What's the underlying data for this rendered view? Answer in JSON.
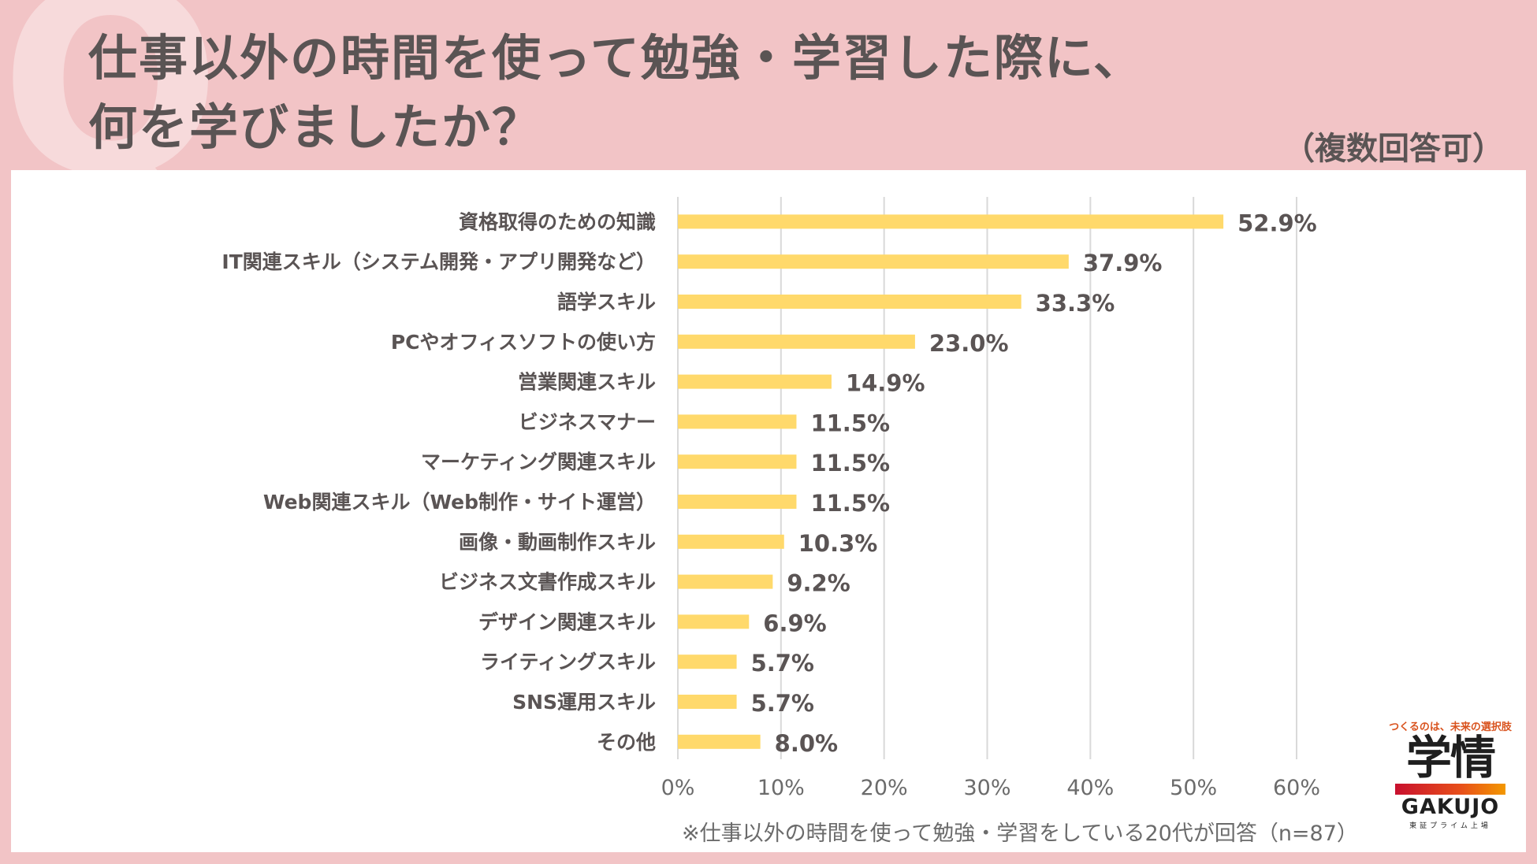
{
  "page": {
    "title_line1": "仕事以外の時間を使って勉強・学習した際に、",
    "title_line2": "何を学びましたか？",
    "subtitle": "（複数回答可）",
    "note": "※仕事以外の時間を使って勉強・学習をしている20代が回答（n=87）",
    "decorative_letter": "Q"
  },
  "logo": {
    "tagline": "つくるのは、未来の選択肢",
    "mark": "学情",
    "english": "GAKUJO",
    "listed": "東証プライム上場"
  },
  "colors": {
    "background": "#f2c4c6",
    "bar": "#ffd96b",
    "text": "#5a5454",
    "grid": "#d9d9d9"
  },
  "chart_data": {
    "type": "bar",
    "orientation": "horizontal",
    "categories": [
      "資格取得のための知識",
      "IT関連スキル（システム開発・アプリ開発など）",
      "語学スキル",
      "PCやオフィスソフトの使い方",
      "営業関連スキル",
      "ビジネスマナー",
      "マーケティング関連スキル",
      "Web関連スキル（Web制作・サイト運営）",
      "画像・動画制作スキル",
      "ビジネス文書作成スキル",
      "デザイン関連スキル",
      "ライティングスキル",
      "SNS運用スキル",
      "その他"
    ],
    "values": [
      52.9,
      37.9,
      33.3,
      23.0,
      14.9,
      11.5,
      11.5,
      11.5,
      10.3,
      9.2,
      6.9,
      5.7,
      5.7,
      8.0
    ],
    "value_labels": [
      "52.9%",
      "37.9%",
      "33.3%",
      "23.0%",
      "14.9%",
      "11.5%",
      "11.5%",
      "11.5%",
      "10.3%",
      "9.2%",
      "6.9%",
      "5.7%",
      "5.7%",
      "8.0%"
    ],
    "xlim": [
      0,
      60
    ],
    "xticks": [
      0,
      10,
      20,
      30,
      40,
      50,
      60
    ],
    "xtick_labels": [
      "0%",
      "10%",
      "20%",
      "30%",
      "40%",
      "50%",
      "60%"
    ],
    "grid": true,
    "title": "仕事以外の時間を使って勉強・学習した際に、何を学びましたか？",
    "xlabel": "",
    "ylabel": ""
  }
}
